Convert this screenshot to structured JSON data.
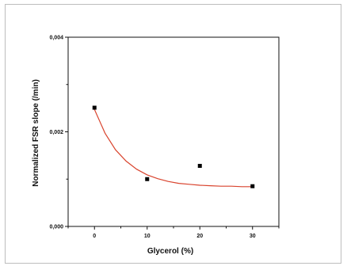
{
  "chart_data": {
    "type": "scatter",
    "title": "",
    "xlabel": "Glycerol (%)",
    "ylabel": "Normalized FSR slope (/min)",
    "xlim": [
      -5,
      35
    ],
    "ylim": [
      0.0,
      0.004
    ],
    "x_ticks": [
      0,
      10,
      20,
      30
    ],
    "y_ticks": [
      0.0,
      0.002,
      0.004
    ],
    "x_tick_labels": [
      "0",
      "10",
      "20",
      "30"
    ],
    "y_tick_labels": [
      "0,000",
      "0,002",
      "0,004"
    ],
    "grid": false,
    "legend": "none",
    "series": [
      {
        "marker": "square",
        "color": "#000000",
        "x": [
          0,
          10,
          20,
          30
        ],
        "y": [
          0.00251,
          0.001,
          0.00128,
          0.00085
        ]
      }
    ],
    "fit": {
      "type": "exponential-decay",
      "color": "#d9442e",
      "x": [
        0,
        2,
        4,
        6,
        8,
        10,
        12,
        14,
        16,
        18,
        20,
        22,
        24,
        26,
        28,
        30
      ],
      "y": [
        0.00247,
        0.00197,
        0.00162,
        0.00138,
        0.00121,
        0.00109,
        0.00101,
        0.00095,
        0.00091,
        0.00089,
        0.00087,
        0.00086,
        0.00085,
        0.00085,
        0.00084,
        0.00084
      ]
    }
  }
}
